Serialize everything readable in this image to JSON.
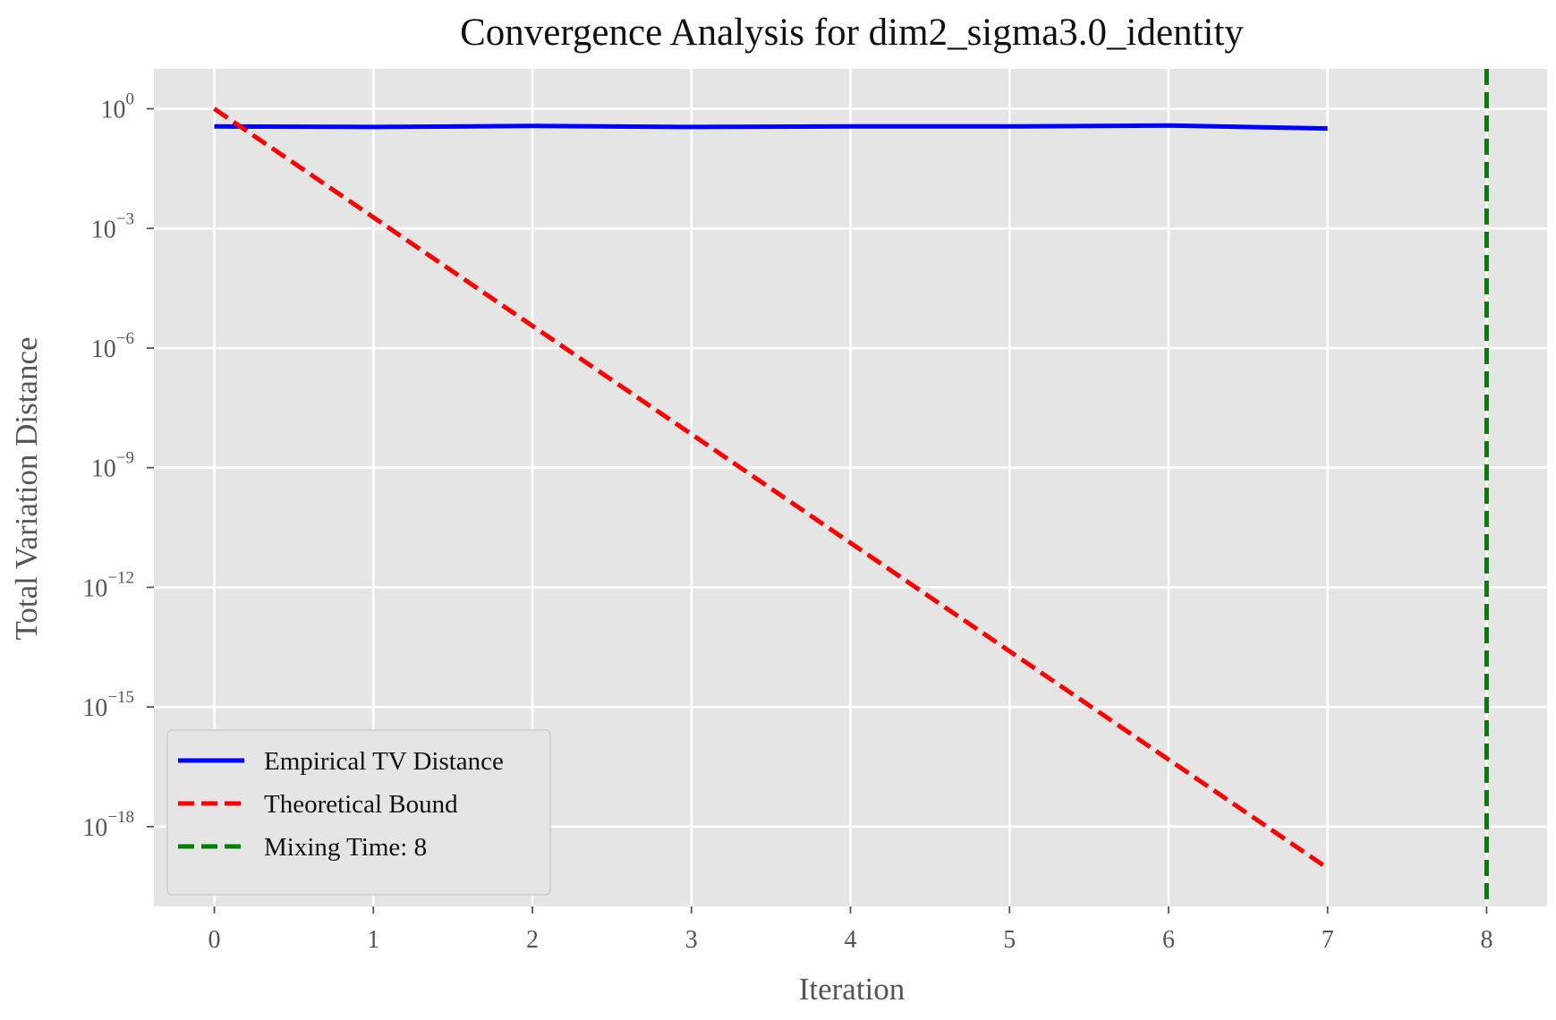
{
  "chart_data": {
    "type": "line",
    "title": "Convergence Analysis for dim2_sigma3.0_identity",
    "xlabel": "Iteration",
    "ylabel": "Total Variation Distance",
    "yscale": "log",
    "xlim": [
      -0.38,
      8.38
    ],
    "ylim_log10": [
      -20,
      1
    ],
    "x_ticks": [
      0,
      1,
      2,
      3,
      4,
      5,
      6,
      7,
      8
    ],
    "y_ticks": [
      {
        "base": "10",
        "exp": "0",
        "value": 1.0
      },
      {
        "base": "10",
        "exp": "−3",
        "value": 0.001
      },
      {
        "base": "10",
        "exp": "−6",
        "value": 1e-06
      },
      {
        "base": "10",
        "exp": "−9",
        "value": 1e-09
      },
      {
        "base": "10",
        "exp": "−12",
        "value": 1e-12
      },
      {
        "base": "10",
        "exp": "−15",
        "value": 1e-15
      },
      {
        "base": "10",
        "exp": "−18",
        "value": 1e-18
      }
    ],
    "grid": true,
    "legend_position": "lower-left",
    "series": [
      {
        "name": "Empirical TV Distance",
        "color": "#0000ff",
        "style": "solid",
        "x": [
          0,
          1,
          2,
          3,
          4,
          5,
          6,
          7
        ],
        "y": [
          0.36,
          0.35,
          0.37,
          0.35,
          0.36,
          0.36,
          0.38,
          0.32
        ]
      },
      {
        "name": "Theoretical Bound",
        "color": "#ff0000",
        "style": "dashed",
        "x": [
          0,
          1,
          2,
          3,
          4,
          5,
          6,
          7
        ],
        "y": [
          1.0,
          0.0019,
          3.6e-06,
          6.9e-09,
          1.3e-11,
          2.5e-14,
          4.8e-17,
          9.1e-20
        ]
      }
    ],
    "vlines": [
      {
        "name": "Mixing Time: 8",
        "x": 8,
        "color": "#008000",
        "style": "dashed"
      }
    ]
  }
}
